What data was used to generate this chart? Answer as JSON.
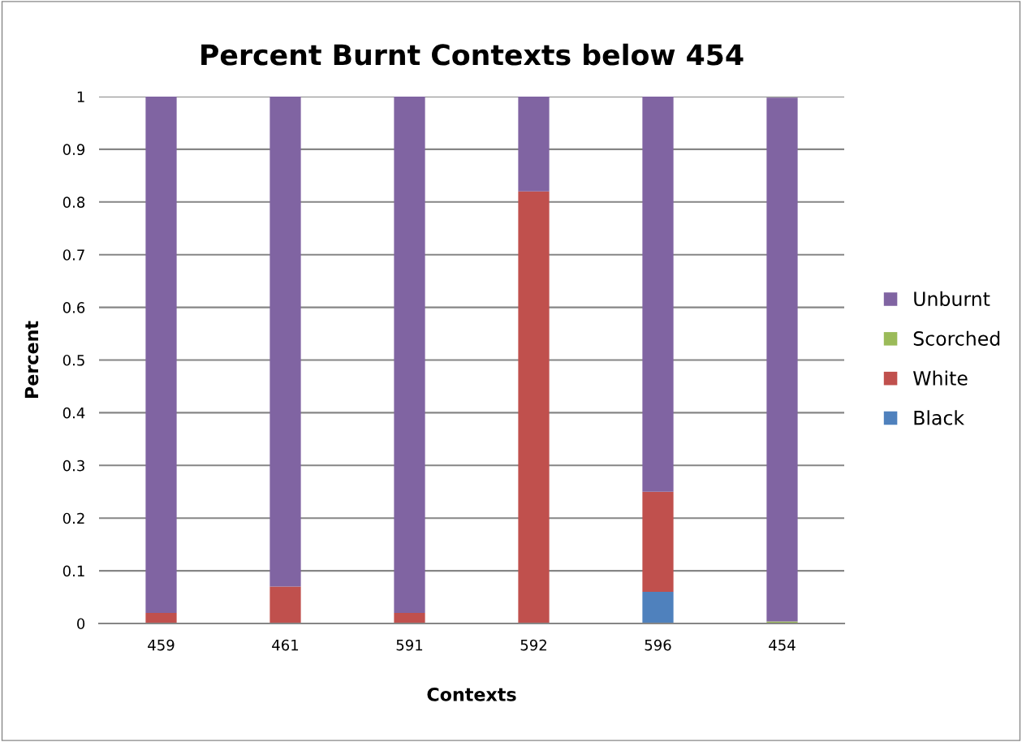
{
  "chart_data": {
    "type": "bar",
    "title": "Percent Burnt Contexts below 454",
    "xlabel": "Contexts",
    "ylabel": "Percent",
    "categories": [
      "459",
      "461",
      "591",
      "592",
      "596",
      "454"
    ],
    "stacked": true,
    "series": [
      {
        "name": "Black",
        "color": "#4f81bd",
        "values": [
          0,
          0,
          0,
          0,
          0.06,
          null
        ]
      },
      {
        "name": "White",
        "color": "#c0504d",
        "values": [
          0.02,
          0.07,
          0.02,
          0.82,
          0.19,
          0
        ]
      },
      {
        "name": "Scorched",
        "color": "#9bbb59",
        "values": [
          0,
          0,
          0,
          0,
          0,
          0.004
        ]
      },
      {
        "name": "Unburnt",
        "color": "#8064a2",
        "values": [
          0.98,
          0.93,
          0.98,
          0.18,
          0.75,
          0.994
        ]
      }
    ],
    "ylim": [
      0,
      1
    ],
    "yticks": [
      0,
      0.1,
      0.2,
      0.3,
      0.4,
      0.5,
      0.6,
      0.7,
      0.8,
      0.9,
      1
    ],
    "grid": "y",
    "legend": "right"
  }
}
